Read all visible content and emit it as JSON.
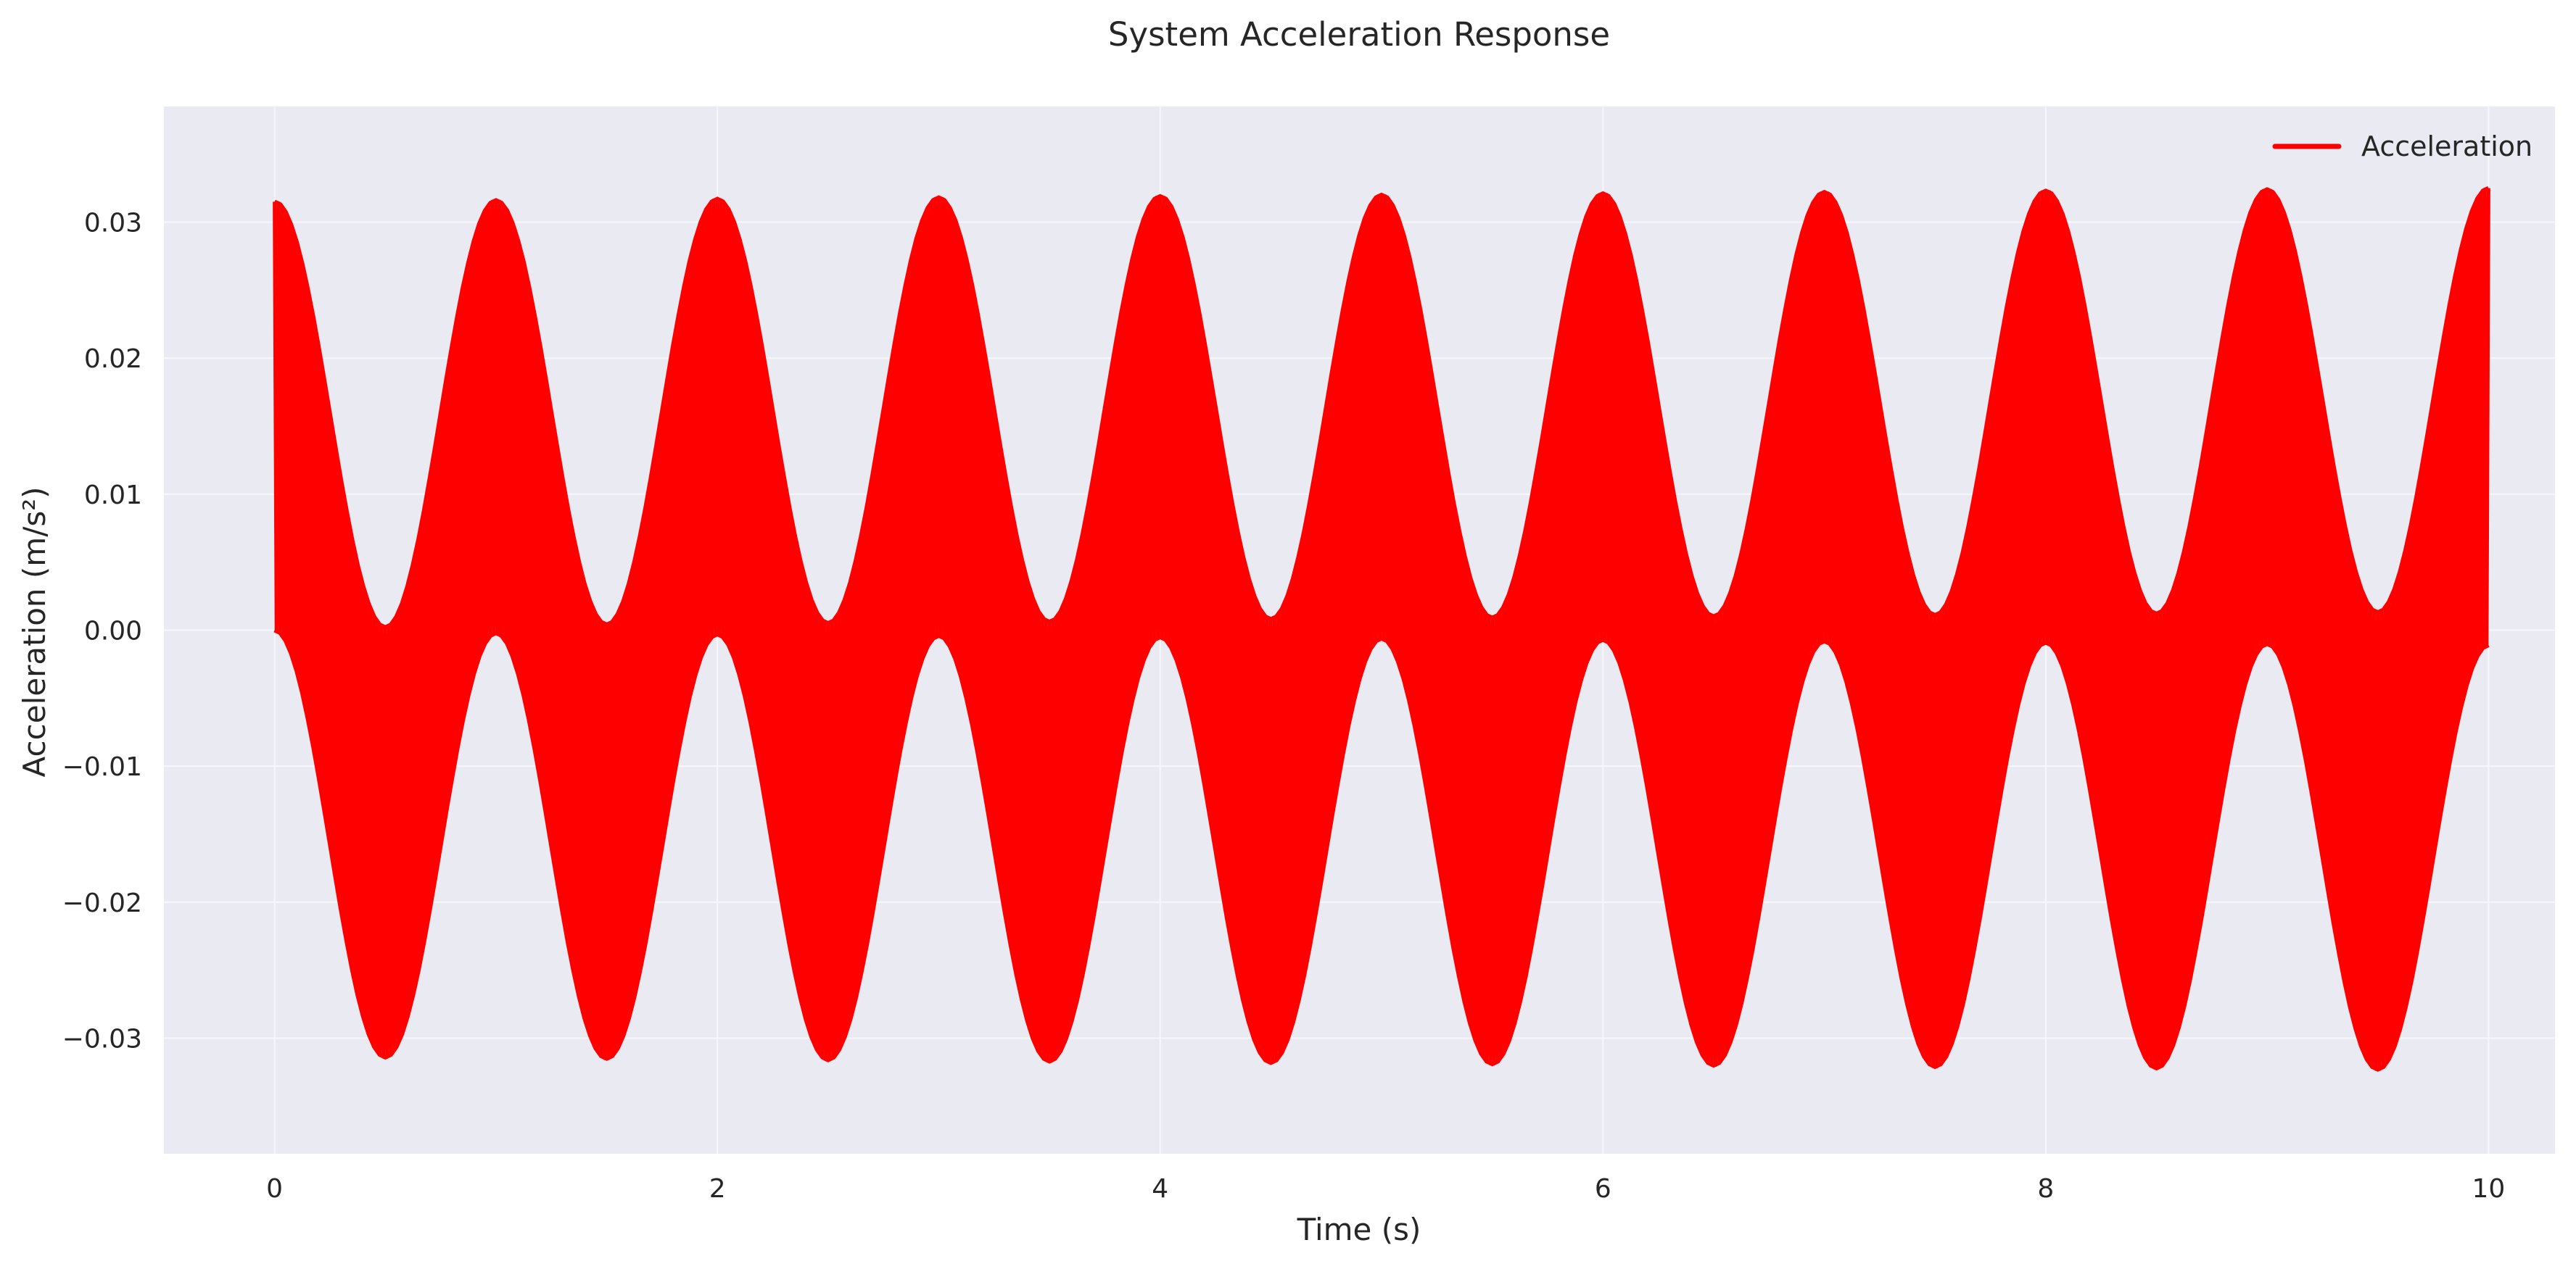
{
  "chart_data": {
    "type": "line",
    "title": "System Acceleration Response",
    "xlabel": "Time (s)",
    "ylabel": "Acceleration (m/s²)",
    "xlim": [
      -0.5,
      10.3
    ],
    "ylim": [
      -0.0385,
      0.0385
    ],
    "x_ticks": [
      0,
      2,
      4,
      6,
      8,
      10
    ],
    "x_tick_labels": [
      "0",
      "2",
      "4",
      "6",
      "8",
      "10"
    ],
    "y_ticks": [
      -0.03,
      -0.02,
      -0.01,
      0.0,
      0.01,
      0.02,
      0.03
    ],
    "y_tick_labels": [
      "−0.03",
      "−0.02",
      "−0.01",
      "0.00",
      "0.01",
      "0.02",
      "0.03"
    ],
    "grid": true,
    "legend": {
      "placement": "top-right",
      "entries": [
        "Acceleration"
      ]
    },
    "series": [
      {
        "name": "Acceleration",
        "color": "#ff0000",
        "x": [
          0,
          0.5,
          1,
          1.5,
          2,
          2.5,
          3,
          3.5,
          4,
          4.5,
          5,
          5.5,
          6,
          6.5,
          7,
          7.5,
          8,
          8.5,
          9,
          9.5,
          10
        ],
        "upper_envelope": [
          0.0315,
          0.0002,
          0.0316,
          0.0004,
          0.0317,
          0.0005,
          0.0318,
          0.0006,
          0.0319,
          0.0008,
          0.032,
          0.0009,
          0.0321,
          0.001,
          0.0322,
          0.0011,
          0.0323,
          0.0012,
          0.0324,
          0.0013,
          0.0325
        ],
        "lower_envelope": [
          0.0,
          -0.0314,
          -0.0002,
          -0.0315,
          -0.0003,
          -0.0316,
          -0.0004,
          -0.0317,
          -0.0005,
          -0.0318,
          -0.0006,
          -0.0319,
          -0.0007,
          -0.032,
          -0.0008,
          -0.0321,
          -0.0009,
          -0.0322,
          -0.001,
          -0.0323,
          -0.0011
        ]
      }
    ]
  }
}
